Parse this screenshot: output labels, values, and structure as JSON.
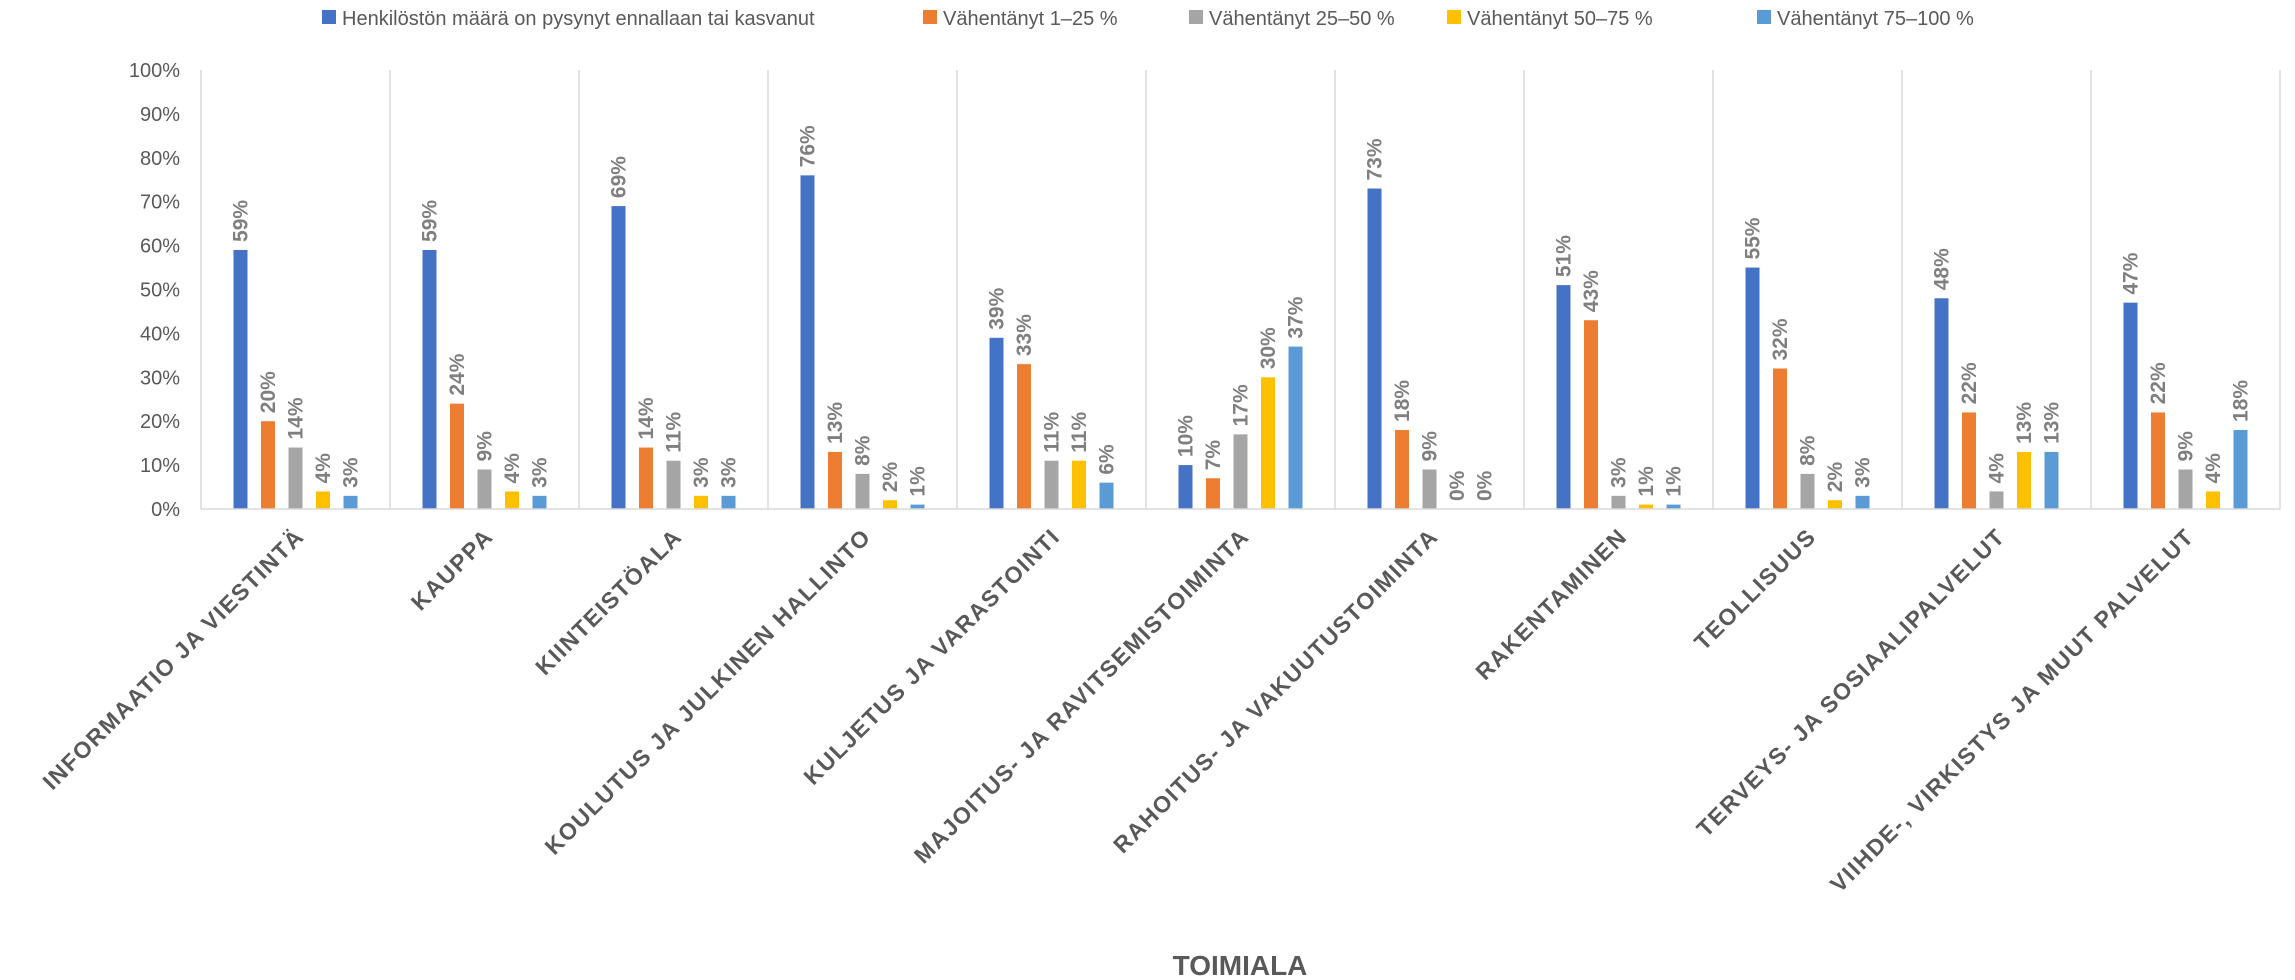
{
  "chart_data": {
    "type": "bar",
    "title": "",
    "xlabel": "TOIMIALA",
    "ylabel": "",
    "ylim": [
      0,
      100
    ],
    "yticks": [
      "0%",
      "10%",
      "20%",
      "30%",
      "40%",
      "50%",
      "60%",
      "70%",
      "80%",
      "90%",
      "100%"
    ],
    "value_suffix": "%",
    "legend_position": "top",
    "grid": "vertical category separators",
    "categories": [
      "INFORMAATIO JA VIESTINTÄ",
      "KAUPPA",
      "KIINTEISTÖALA",
      "KOULUTUS JA JULKINEN HALLINTO",
      "KULJETUS JA VARASTOINTI",
      "MAJOITUS- JA RAVITSEMISTOIMINTA",
      "RAHOITUS- JA VAKUUTUSTOIMINTA",
      "RAKENTAMINEN",
      "TEOLLISUUS",
      "TERVEYS- JA SOSIAALIPALVELUT",
      "VIIHDE-, VIRKISTYS JA MUUT PALVELUT"
    ],
    "series": [
      {
        "name": "Henkilöstön määrä on pysynyt ennallaan tai kasvanut",
        "color": "#4472C4",
        "values": [
          59,
          59,
          69,
          76,
          39,
          10,
          73,
          51,
          55,
          48,
          47
        ]
      },
      {
        "name": "Vähentänyt 1–25 %",
        "color": "#ED7D31",
        "values": [
          20,
          24,
          14,
          13,
          33,
          7,
          18,
          43,
          32,
          22,
          22
        ]
      },
      {
        "name": "Vähentänyt 25–50 %",
        "color": "#A5A5A5",
        "values": [
          14,
          9,
          11,
          8,
          11,
          17,
          9,
          3,
          8,
          4,
          9
        ]
      },
      {
        "name": "Vähentänyt 50–75 %",
        "color": "#FFC000",
        "values": [
          4,
          4,
          3,
          2,
          11,
          30,
          0,
          1,
          2,
          13,
          4
        ]
      },
      {
        "name": "Vähentänyt 75–100 %",
        "color": "#5B9BD5",
        "values": [
          3,
          3,
          3,
          1,
          6,
          37,
          0,
          1,
          3,
          13,
          18
        ]
      }
    ]
  }
}
